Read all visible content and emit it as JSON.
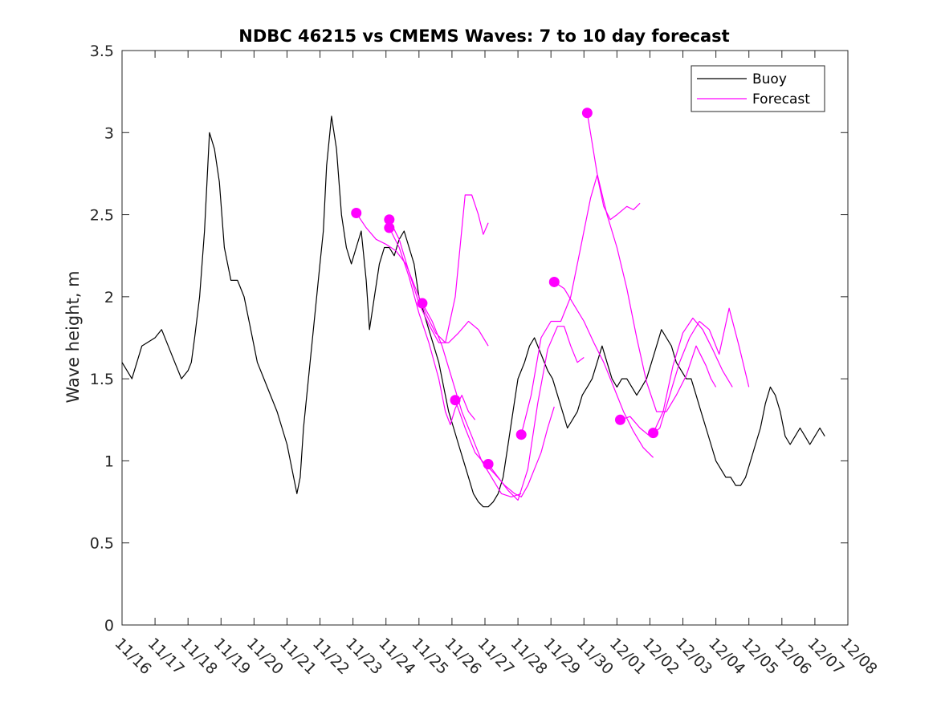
{
  "chart_data": {
    "type": "line",
    "title": "NDBC 46215 vs CMEMS Waves: 7 to 10 day forecast",
    "xlabel": "",
    "ylabel": "Wave height, m",
    "x_tick_labels": [
      "11/16",
      "11/17",
      "11/18",
      "11/19",
      "11/20",
      "11/21",
      "11/22",
      "11/23",
      "11/24",
      "11/25",
      "11/26",
      "11/27",
      "11/28",
      "11/29",
      "11/30",
      "12/01",
      "12/02",
      "12/03",
      "12/04",
      "12/05",
      "12/06",
      "12/07",
      "12/08"
    ],
    "xlim_days": [
      0,
      22
    ],
    "ylim": [
      0,
      3.5
    ],
    "y_ticks": [
      0,
      0.5,
      1,
      1.5,
      2,
      2.5,
      3,
      3.5
    ],
    "y_tick_labels": [
      "0",
      "0.5",
      "1",
      "1.5",
      "2",
      "2.5",
      "3",
      "3.5"
    ],
    "grid": false,
    "legend": {
      "placement": "top-right",
      "entries": [
        {
          "name": "Buoy",
          "color": "#000000"
        },
        {
          "name": "Forecast",
          "color": "#ff00ff"
        }
      ]
    },
    "series": [
      {
        "name": "Buoy",
        "color": "#000000",
        "x": [
          0.0,
          0.3,
          0.6,
          1.0,
          1.2,
          1.4,
          1.6,
          1.8,
          2.0,
          2.1,
          2.2,
          2.35,
          2.5,
          2.65,
          2.8,
          2.95,
          3.1,
          3.3,
          3.5,
          3.7,
          3.9,
          4.1,
          4.3,
          4.5,
          4.7,
          4.85,
          5.0,
          5.1,
          5.2,
          5.3,
          5.4,
          5.5,
          5.6,
          5.7,
          5.8,
          5.9,
          6.0,
          6.1,
          6.2,
          6.35,
          6.5,
          6.65,
          6.8,
          6.95,
          7.1,
          7.25,
          7.4,
          7.5,
          7.65,
          7.8,
          7.95,
          8.1,
          8.25,
          8.4,
          8.55,
          8.7,
          8.85,
          9.0,
          9.15,
          9.3,
          9.45,
          9.6,
          9.75,
          9.9,
          10.05,
          10.2,
          10.35,
          10.5,
          10.65,
          10.8,
          10.95,
          11.1,
          11.25,
          11.4,
          11.55,
          11.7,
          11.85,
          12.0,
          12.1,
          12.2,
          12.35,
          12.5,
          12.7,
          12.9,
          13.05,
          13.2,
          13.35,
          13.5,
          13.65,
          13.8,
          13.95,
          14.1,
          14.25,
          14.4,
          14.55,
          14.7,
          14.85,
          15.0,
          15.15,
          15.3,
          15.45,
          15.6,
          15.75,
          15.9,
          16.05,
          16.2,
          16.35,
          16.5,
          16.65,
          16.8,
          16.95,
          17.1,
          17.25,
          17.4,
          17.55,
          17.7,
          17.85,
          18.0,
          18.15,
          18.3,
          18.45,
          18.6,
          18.75,
          18.9,
          19.05,
          19.2,
          19.35,
          19.5,
          19.65,
          19.8,
          19.95,
          20.1,
          20.25,
          20.4,
          20.55,
          20.7,
          20.85,
          21.0,
          21.15,
          21.3
        ],
        "values": [
          1.6,
          1.5,
          1.7,
          1.75,
          1.8,
          1.7,
          1.6,
          1.5,
          1.55,
          1.6,
          1.75,
          2.0,
          2.4,
          3.0,
          2.9,
          2.7,
          2.3,
          2.1,
          2.1,
          2.0,
          1.8,
          1.6,
          1.5,
          1.4,
          1.3,
          1.2,
          1.1,
          1.0,
          0.9,
          0.8,
          0.9,
          1.2,
          1.4,
          1.6,
          1.8,
          2.0,
          2.2,
          2.4,
          2.8,
          3.1,
          2.9,
          2.5,
          2.3,
          2.2,
          2.3,
          2.4,
          2.1,
          1.8,
          2.0,
          2.2,
          2.3,
          2.3,
          2.25,
          2.35,
          2.4,
          2.3,
          2.2,
          2.0,
          1.9,
          1.8,
          1.7,
          1.6,
          1.45,
          1.3,
          1.2,
          1.1,
          1.0,
          0.9,
          0.8,
          0.75,
          0.72,
          0.72,
          0.75,
          0.8,
          0.9,
          1.1,
          1.3,
          1.5,
          1.55,
          1.6,
          1.7,
          1.75,
          1.65,
          1.55,
          1.5,
          1.4,
          1.3,
          1.2,
          1.25,
          1.3,
          1.4,
          1.45,
          1.5,
          1.6,
          1.7,
          1.6,
          1.5,
          1.45,
          1.5,
          1.5,
          1.45,
          1.4,
          1.45,
          1.5,
          1.6,
          1.7,
          1.8,
          1.75,
          1.7,
          1.6,
          1.55,
          1.5,
          1.5,
          1.4,
          1.3,
          1.2,
          1.1,
          1.0,
          0.95,
          0.9,
          0.9,
          0.85,
          0.85,
          0.9,
          1.0,
          1.1,
          1.2,
          1.35,
          1.45,
          1.4,
          1.3,
          1.15,
          1.1,
          1.15,
          1.2,
          1.15,
          1.1,
          1.15,
          1.2,
          1.15
        ]
      },
      {
        "name": "",
        "color": "#ff00ff",
        "x": [
          7.1,
          7.4,
          7.7,
          8.0,
          8.3,
          8.6,
          8.9,
          9.2,
          9.5,
          9.8,
          10.1,
          10.4,
          10.6,
          10.8,
          10.95,
          11.1
        ],
        "values": [
          2.51,
          2.42,
          2.35,
          2.32,
          2.28,
          2.2,
          2.05,
          1.9,
          1.78,
          1.72,
          2.0,
          2.62,
          2.62,
          2.5,
          2.38,
          2.45
        ]
      },
      {
        "name": "",
        "color": "#ff00ff",
        "x": [
          8.1,
          8.4,
          8.7,
          9.0,
          9.3,
          9.6,
          9.9,
          10.2,
          10.5,
          10.8,
          11.1
        ],
        "values": [
          2.47,
          2.35,
          2.15,
          1.96,
          1.83,
          1.72,
          1.72,
          1.78,
          1.85,
          1.8,
          1.7
        ]
      },
      {
        "name": "",
        "color": "#ff00ff",
        "x": [
          8.1,
          8.4,
          8.7,
          9.0,
          9.3,
          9.6,
          9.8,
          9.95,
          10.1,
          10.3,
          10.5,
          10.7
        ],
        "values": [
          2.42,
          2.3,
          2.12,
          1.9,
          1.72,
          1.5,
          1.3,
          1.22,
          1.32,
          1.4,
          1.3,
          1.25
        ]
      },
      {
        "name": "",
        "color": "#ff00ff",
        "x": [
          9.1,
          9.4,
          9.7,
          10.0,
          10.3,
          10.6,
          10.9,
          11.2,
          11.5,
          11.8,
          12.1
        ],
        "values": [
          1.96,
          1.85,
          1.7,
          1.5,
          1.3,
          1.15,
          1.0,
          0.9,
          0.8,
          0.78,
          0.8
        ]
      },
      {
        "name": "",
        "color": "#ff00ff",
        "x": [
          10.1,
          10.4,
          10.7,
          11.0,
          11.3,
          11.6,
          11.9,
          12.1,
          12.3,
          12.5,
          12.7,
          12.9,
          13.1
        ],
        "values": [
          1.37,
          1.2,
          1.05,
          0.98,
          0.92,
          0.85,
          0.8,
          0.78,
          0.85,
          0.95,
          1.05,
          1.2,
          1.33
        ]
      },
      {
        "name": "",
        "color": "#ff00ff",
        "x": [
          11.1,
          11.4,
          11.7,
          12.0,
          12.3,
          12.6,
          12.9,
          13.2,
          13.4,
          13.6,
          13.8,
          14.0
        ],
        "values": [
          0.98,
          0.9,
          0.82,
          0.76,
          0.95,
          1.35,
          1.68,
          1.82,
          1.82,
          1.7,
          1.6,
          1.63
        ]
      },
      {
        "name": "",
        "color": "#ff00ff",
        "x": [
          12.1,
          12.4,
          12.7,
          13.0,
          13.3,
          13.6,
          13.9,
          14.2,
          14.4,
          14.6,
          14.8,
          15.0,
          15.3,
          15.5,
          15.7
        ],
        "values": [
          1.16,
          1.4,
          1.75,
          1.85,
          1.85,
          2.0,
          2.3,
          2.6,
          2.74,
          2.55,
          2.47,
          2.5,
          2.55,
          2.53,
          2.57
        ]
      },
      {
        "name": "",
        "color": "#ff00ff",
        "x": [
          13.1,
          13.4,
          13.7,
          14.0,
          14.3,
          14.6,
          14.9,
          15.2,
          15.5,
          15.8,
          16.1
        ],
        "values": [
          2.09,
          2.05,
          1.95,
          1.85,
          1.72,
          1.6,
          1.45,
          1.3,
          1.18,
          1.08,
          1.02
        ]
      },
      {
        "name": "",
        "color": "#ff00ff",
        "x": [
          14.1,
          14.4,
          14.7,
          15.0,
          15.3,
          15.6,
          15.9,
          16.2,
          16.5,
          16.8,
          17.1,
          17.4,
          17.7,
          17.85,
          18.0
        ],
        "values": [
          3.12,
          2.75,
          2.5,
          2.3,
          2.05,
          1.75,
          1.48,
          1.3,
          1.3,
          1.4,
          1.52,
          1.7,
          1.58,
          1.5,
          1.45
        ]
      },
      {
        "name": "",
        "color": "#ff00ff",
        "x": [
          15.1,
          15.4,
          15.7,
          16.0,
          16.3,
          16.6,
          16.9,
          17.2,
          17.5,
          17.8,
          18.1,
          18.4,
          18.7,
          19.0
        ],
        "values": [
          1.25,
          1.27,
          1.2,
          1.15,
          1.2,
          1.4,
          1.6,
          1.75,
          1.85,
          1.8,
          1.65,
          1.93,
          1.7,
          1.45
        ]
      },
      {
        "name": "",
        "color": "#ff00ff",
        "x": [
          16.1,
          16.4,
          16.7,
          17.0,
          17.3,
          17.6,
          17.9,
          18.2,
          18.5
        ],
        "values": [
          1.17,
          1.3,
          1.58,
          1.78,
          1.87,
          1.8,
          1.68,
          1.55,
          1.45
        ]
      }
    ],
    "forecast_start_markers": {
      "color": "#ff00ff",
      "x": [
        7.1,
        8.1,
        8.1,
        9.1,
        10.1,
        11.1,
        12.1,
        13.1,
        14.1,
        15.1,
        16.1
      ],
      "values": [
        2.51,
        2.47,
        2.42,
        1.96,
        1.37,
        0.98,
        1.16,
        2.09,
        3.12,
        1.25,
        1.17
      ]
    }
  }
}
